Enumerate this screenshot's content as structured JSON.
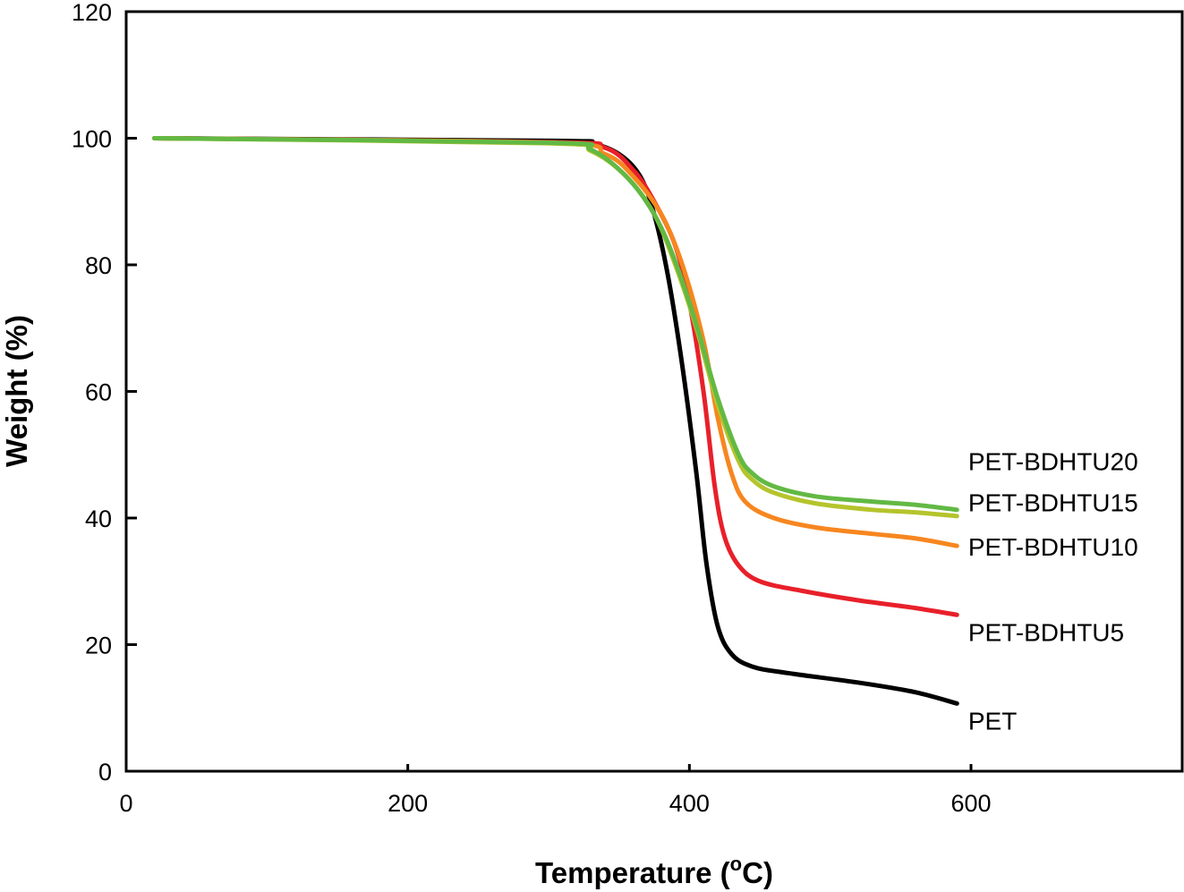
{
  "chart_data": {
    "type": "line",
    "title": "",
    "xlabel": "Temperature (",
    "xlabel_sup": "o",
    "xlabel_unit": "C)",
    "ylabel": "Weight (%)",
    "xlim": [
      0,
      750
    ],
    "ylim": [
      0,
      120
    ],
    "xticks": [
      0,
      200,
      400,
      600
    ],
    "yticks": [
      0,
      20,
      40,
      60,
      80,
      100,
      120
    ],
    "grid": false,
    "legend": "inline-right",
    "series": [
      {
        "name": "PET",
        "color": "#000000",
        "label_value": 8,
        "x": [
          20,
          300,
          330,
          350,
          365,
          375,
          385,
          395,
          405,
          412,
          420,
          430,
          445,
          470,
          520,
          560,
          590
        ],
        "y": [
          100,
          99.6,
          99.2,
          97.5,
          94,
          88,
          78,
          64,
          47,
          33,
          23,
          18.5,
          16.5,
          15.5,
          14,
          12.5,
          10.7
        ]
      },
      {
        "name": "PET-BDHTU5",
        "color": "#e8202a",
        "label_value": 22,
        "x": [
          20,
          300,
          340,
          360,
          375,
          390,
          400,
          410,
          418,
          425,
          435,
          450,
          480,
          520,
          560,
          590
        ],
        "y": [
          100,
          99.4,
          98.5,
          95,
          90,
          83,
          74,
          60,
          45,
          37,
          32.5,
          30,
          28.5,
          27,
          25.8,
          24.7
        ]
      },
      {
        "name": "PET-BDHTU10",
        "color": "#f7861f",
        "label_value": 35.5,
        "x": [
          20,
          300,
          340,
          360,
          380,
          395,
          410,
          420,
          430,
          440,
          460,
          490,
          530,
          560,
          590
        ],
        "y": [
          100,
          99.3,
          97.5,
          94,
          88,
          80,
          68,
          56,
          47,
          42.5,
          40,
          38.5,
          37.5,
          36.8,
          35.6
        ]
      },
      {
        "name": "PET-BDHTU15",
        "color": "#b5c42c",
        "label_value": 42.5,
        "x": [
          20,
          300,
          330,
          355,
          375,
          390,
          405,
          420,
          435,
          445,
          460,
          490,
          530,
          560,
          590
        ],
        "y": [
          100,
          99.2,
          98,
          94,
          88,
          80,
          70,
          58,
          49,
          46,
          44,
          42.3,
          41.3,
          40.9,
          40.3
        ]
      },
      {
        "name": "PET-BDHTU20",
        "color": "#62b944",
        "label_value": 49,
        "x": [
          20,
          300,
          330,
          355,
          375,
          390,
          405,
          420,
          435,
          445,
          460,
          490,
          530,
          560,
          590
        ],
        "y": [
          100,
          99.3,
          98.2,
          94,
          88,
          80.5,
          70.5,
          59,
          50,
          47,
          45,
          43.4,
          42.6,
          42.1,
          41.3
        ]
      }
    ]
  }
}
